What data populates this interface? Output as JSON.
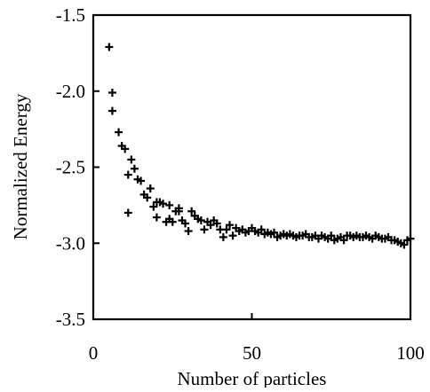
{
  "chart_data": {
    "type": "scatter",
    "title": "",
    "xlabel": "Number of particles",
    "ylabel": "Normalized Energy",
    "xlim": [
      0,
      100
    ],
    "ylim": [
      -3.5,
      -1.5
    ],
    "x_ticks": [
      0,
      50,
      100
    ],
    "x_tick_labels": [
      "0",
      "50",
      "100"
    ],
    "y_ticks": [
      -1.5,
      -2.0,
      -2.5,
      -3.0,
      -3.5
    ],
    "y_tick_labels": [
      "-1.5",
      "-2.0",
      "-2.5",
      "-3.0",
      "-3.5"
    ],
    "grid": false,
    "marker": "plus",
    "color": "#000000",
    "series": [
      {
        "x": [
          5,
          6,
          6,
          8,
          9,
          10,
          11,
          11,
          12,
          13,
          14,
          15,
          16,
          17,
          18,
          19,
          20,
          20,
          21,
          22,
          23,
          24,
          24,
          25,
          26,
          27,
          27,
          28,
          29,
          30,
          31,
          32,
          33,
          34,
          35,
          36,
          37,
          38,
          39,
          40,
          41,
          42,
          43,
          44,
          45,
          46,
          47,
          48,
          49,
          50,
          51,
          52,
          53,
          54,
          55,
          56,
          57,
          58,
          59,
          60,
          61,
          62,
          63,
          64,
          65,
          66,
          67,
          68,
          69,
          70,
          71,
          72,
          73,
          74,
          75,
          76,
          77,
          78,
          79,
          80,
          81,
          82,
          83,
          84,
          85,
          86,
          87,
          88,
          89,
          90,
          91,
          92,
          93,
          94,
          95,
          96,
          97,
          98,
          99,
          100
        ],
        "y": [
          -1.71,
          -2.13,
          -2.01,
          -2.27,
          -2.36,
          -2.38,
          -2.55,
          -2.8,
          -2.45,
          -2.51,
          -2.58,
          -2.59,
          -2.68,
          -2.7,
          -2.64,
          -2.76,
          -2.73,
          -2.83,
          -2.73,
          -2.74,
          -2.86,
          -2.75,
          -2.84,
          -2.86,
          -2.79,
          -2.79,
          -2.77,
          -2.85,
          -2.87,
          -2.92,
          -2.79,
          -2.82,
          -2.84,
          -2.85,
          -2.91,
          -2.86,
          -2.88,
          -2.85,
          -2.87,
          -2.91,
          -2.96,
          -2.91,
          -2.88,
          -2.95,
          -2.9,
          -2.92,
          -2.91,
          -2.93,
          -2.92,
          -2.9,
          -2.92,
          -2.93,
          -2.91,
          -2.94,
          -2.93,
          -2.94,
          -2.93,
          -2.96,
          -2.95,
          -2.94,
          -2.95,
          -2.94,
          -2.95,
          -2.96,
          -2.95,
          -2.95,
          -2.94,
          -2.96,
          -2.96,
          -2.95,
          -2.97,
          -2.95,
          -2.96,
          -2.97,
          -2.95,
          -2.98,
          -2.97,
          -2.96,
          -2.98,
          -2.95,
          -2.95,
          -2.96,
          -2.95,
          -2.96,
          -2.96,
          -2.95,
          -2.96,
          -2.97,
          -2.95,
          -2.96,
          -2.97,
          -2.97,
          -2.96,
          -2.98,
          -2.98,
          -2.99,
          -3.0,
          -3.01,
          -2.98,
          -2.97
        ]
      }
    ]
  }
}
